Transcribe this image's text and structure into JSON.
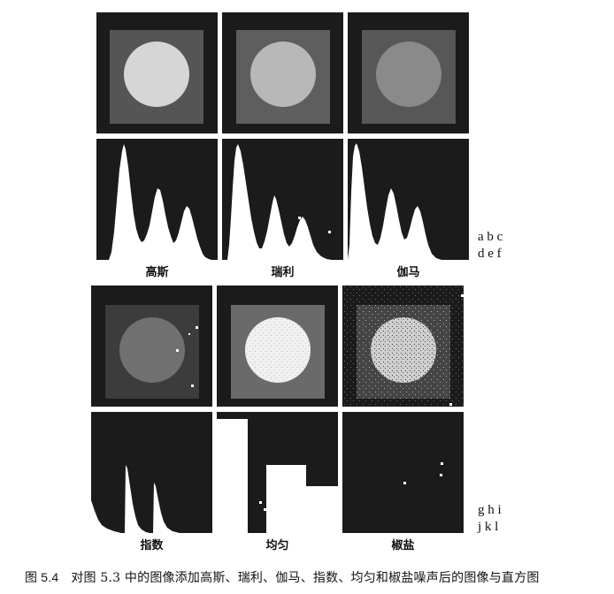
{
  "figure": {
    "figure_number": "图 5.4",
    "caption_text": "对图 5.3 中的图像添加高斯、瑞利、伽马、指数、均匀和椒盐噪声后的图像与直方图",
    "row_letters": {
      "top_first": "a b c",
      "top_second": "d e f",
      "bottom_first": "g h i",
      "bottom_second": "j k l"
    },
    "panel_labels": [
      "高斯",
      "瑞利",
      "伽马",
      "指数",
      "均匀",
      "椒盐"
    ]
  },
  "colors": {
    "panel_background": "#1b1b1b",
    "gaussian_square": "#555555",
    "gaussian_disk": "#d6d6d6",
    "rayleigh_square": "#5e5e5e",
    "rayleigh_disk": "#b8b8b8",
    "gamma_square": "#575757",
    "gamma_disk": "#8a8a8a",
    "exponential_square": "#3c3c3c",
    "exponential_disk": "#707070",
    "uniform_square": "#6a6a6a",
    "uniform_disk": "#f0f0f0",
    "saltpepper_square": "#454545",
    "saltpepper_disk": "#cfcfcf",
    "histogram_fill": "#ffffff"
  }
}
